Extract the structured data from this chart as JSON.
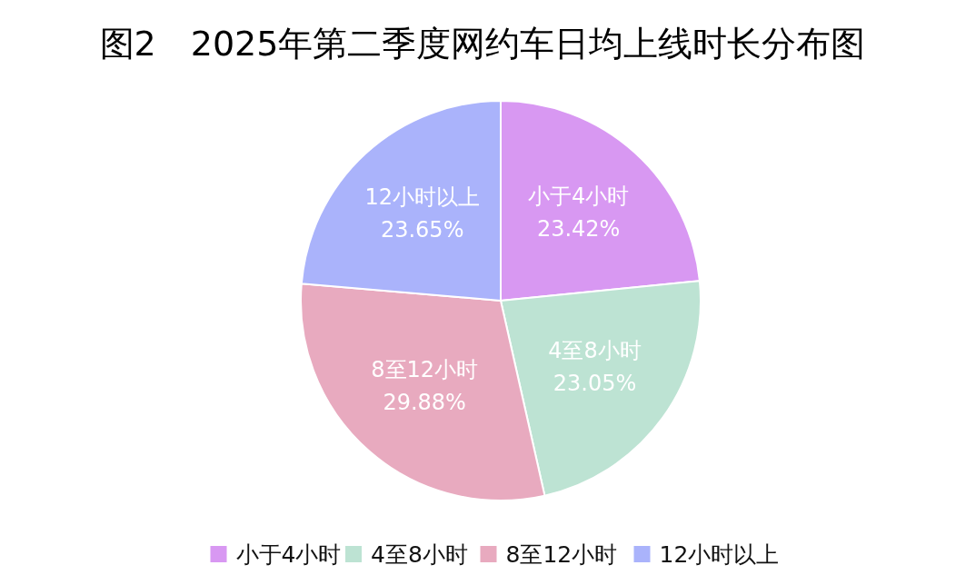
{
  "chart_data": {
    "type": "pie",
    "title": "图2　2025年第二季度网约车日均上线时长分布图",
    "categories": [
      "小于4小时",
      "4至8小时",
      "8至12小时",
      "12小时以上"
    ],
    "values": [
      23.42,
      23.05,
      29.88,
      23.65
    ],
    "colors": [
      "#d898f2",
      "#bde3d3",
      "#e8aabf",
      "#aab3fb"
    ],
    "value_labels": [
      "23.42%",
      "23.05%",
      "29.88%",
      "23.65%"
    ],
    "legend": "bottom"
  }
}
